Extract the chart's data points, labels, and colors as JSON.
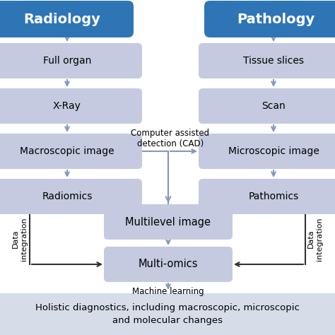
{
  "bg_color": "#ffffff",
  "header_color": "#2E75B6",
  "header_text_color": "#ffffff",
  "box_color": "#C5CAE0",
  "box_text_color": "#000000",
  "arrow_color": "#8896BB",
  "left_header": "Radiology",
  "right_header": "Pathology",
  "left_boxes": [
    "Full organ",
    "X-Ray",
    "Macroscopic image",
    "Radiomics"
  ],
  "right_boxes": [
    "Tissue slices",
    "Scan",
    "Microscopic image",
    "Pathomics"
  ],
  "center_boxes": [
    "Multilevel image",
    "Multi-omics"
  ],
  "cad_label": "Computer assisted\ndetection (CAD)",
  "ml_label": "Machine learning",
  "data_int_label": "Data\nintegration",
  "bottom_text": "Holistic diagnostics, including macroscopic, microscopic\nand molecular changes",
  "bottom_bg": "#D6DCE8"
}
